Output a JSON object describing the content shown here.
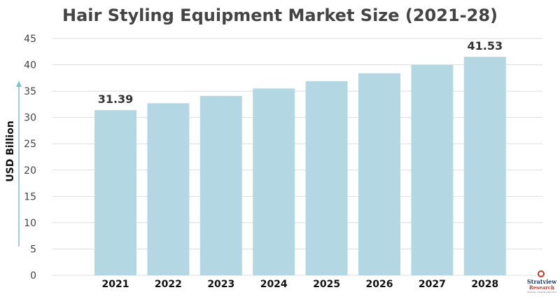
{
  "chart_data": {
    "type": "bar",
    "title": "Hair Styling Equipment Market Size (2021-28)",
    "ylabel": "USD Billion",
    "xlabel": "",
    "categories": [
      "2021",
      "2022",
      "2023",
      "2024",
      "2025",
      "2026",
      "2027",
      "2028"
    ],
    "values": [
      31.39,
      32.7,
      34.1,
      35.5,
      36.9,
      38.4,
      40.0,
      41.53
    ],
    "data_labels": [
      "31.39",
      "",
      "",
      "",
      "",
      "",
      "",
      "41.53"
    ],
    "ylim": [
      0,
      45
    ],
    "yticks": [
      0,
      5,
      10,
      15,
      20,
      25,
      30,
      35,
      40,
      45
    ],
    "grid": true,
    "bar_color": "#b3d7e3",
    "grid_color": "#dddddd",
    "arrow_color": "#7fc4d6"
  },
  "logo": {
    "line1": "Stratview",
    "line2": "Research",
    "line3": "Strategic Insights Delivered"
  }
}
